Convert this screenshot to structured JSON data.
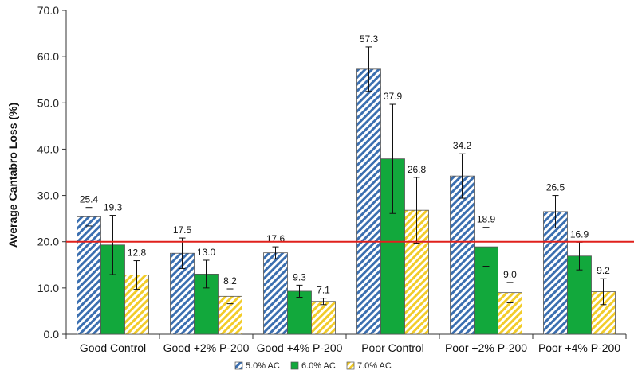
{
  "chart_data": {
    "type": "bar",
    "title": "",
    "xlabel": "",
    "ylabel": "Average Cantabro Loss (%)",
    "ylim": [
      0,
      70
    ],
    "yticks": [
      "0.0",
      "10.0",
      "20.0",
      "30.0",
      "40.0",
      "50.0",
      "60.0",
      "70.0"
    ],
    "ytick_values": [
      0,
      10,
      20,
      30,
      40,
      50,
      60,
      70
    ],
    "grid": false,
    "legend_position": "bottom",
    "categories": [
      "Good Control",
      "Good +2% P-200",
      "Good +4% P-200",
      "Poor Control",
      "Poor +2% P-200",
      "Poor +4% P-200"
    ],
    "series": [
      {
        "name": "5.0% AC",
        "pattern": "blue-diagonal-hatch",
        "color": "#3b6fb0",
        "values": [
          25.4,
          17.5,
          17.6,
          57.3,
          34.2,
          26.5
        ],
        "value_labels": [
          "25.4",
          "17.5",
          "17.6",
          "57.3",
          "34.2",
          "26.5"
        ],
        "error": [
          2.0,
          3.3,
          1.3,
          4.8,
          4.8,
          3.5
        ]
      },
      {
        "name": "6.0% AC",
        "pattern": "solid",
        "color": "#12a83c",
        "values": [
          19.3,
          13.0,
          9.3,
          37.9,
          18.9,
          16.9
        ],
        "value_labels": [
          "19.3",
          "13.0",
          "9.3",
          "37.9",
          "18.9",
          "16.9"
        ],
        "error": [
          6.4,
          3.0,
          1.3,
          11.8,
          4.2,
          3.0
        ]
      },
      {
        "name": "7.0% AC",
        "pattern": "yellow-diagonal-hatch",
        "color": "#f2cc2a",
        "values": [
          12.8,
          8.2,
          7.1,
          26.8,
          9.0,
          9.2
        ],
        "value_labels": [
          "12.8",
          "8.2",
          "7.1",
          "26.8",
          "9.0",
          "9.2"
        ],
        "error": [
          3.1,
          1.6,
          0.7,
          7.1,
          2.2,
          2.8
        ]
      }
    ],
    "reference_line": {
      "y": 20,
      "color": "#e0201c"
    }
  }
}
